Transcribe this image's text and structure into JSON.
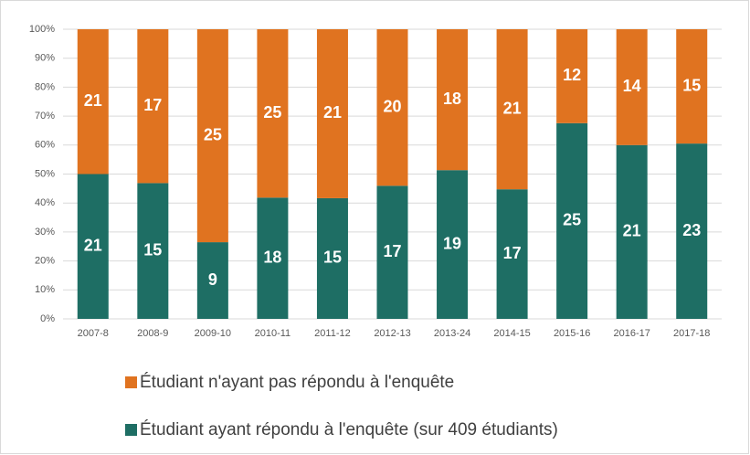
{
  "chart_data": {
    "type": "bar",
    "stacking": "percent",
    "categories": [
      "2007-8",
      "2008-9",
      "2009-10",
      "2010-11",
      "2011-12",
      "2012-13",
      "2013-24",
      "2014-15",
      "2015-16",
      "2016-17",
      "2017-18"
    ],
    "series": [
      {
        "name": "Étudiant ayant répondu à l'enquête (sur 409 étudiants)",
        "color": "#1e6e64",
        "values": [
          21,
          15,
          9,
          18,
          15,
          17,
          19,
          17,
          25,
          21,
          23
        ]
      },
      {
        "name": "Étudiant n'ayant pas répondu à l'enquête",
        "color": "#e07320",
        "values": [
          21,
          17,
          25,
          25,
          21,
          20,
          18,
          21,
          12,
          14,
          15
        ]
      }
    ],
    "ylim": [
      0,
      100
    ],
    "yticks": [
      {
        "value": 0,
        "label": "0%"
      },
      {
        "value": 10,
        "label": "10%"
      },
      {
        "value": 20,
        "label": "20%"
      },
      {
        "value": 30,
        "label": "30%"
      },
      {
        "value": 40,
        "label": "40%"
      },
      {
        "value": 50,
        "label": "50%"
      },
      {
        "value": 60,
        "label": "60%"
      },
      {
        "value": 70,
        "label": "70%"
      },
      {
        "value": 80,
        "label": "80%"
      },
      {
        "value": 90,
        "label": "90%"
      },
      {
        "value": 100,
        "label": "100%"
      }
    ],
    "grid": true
  }
}
